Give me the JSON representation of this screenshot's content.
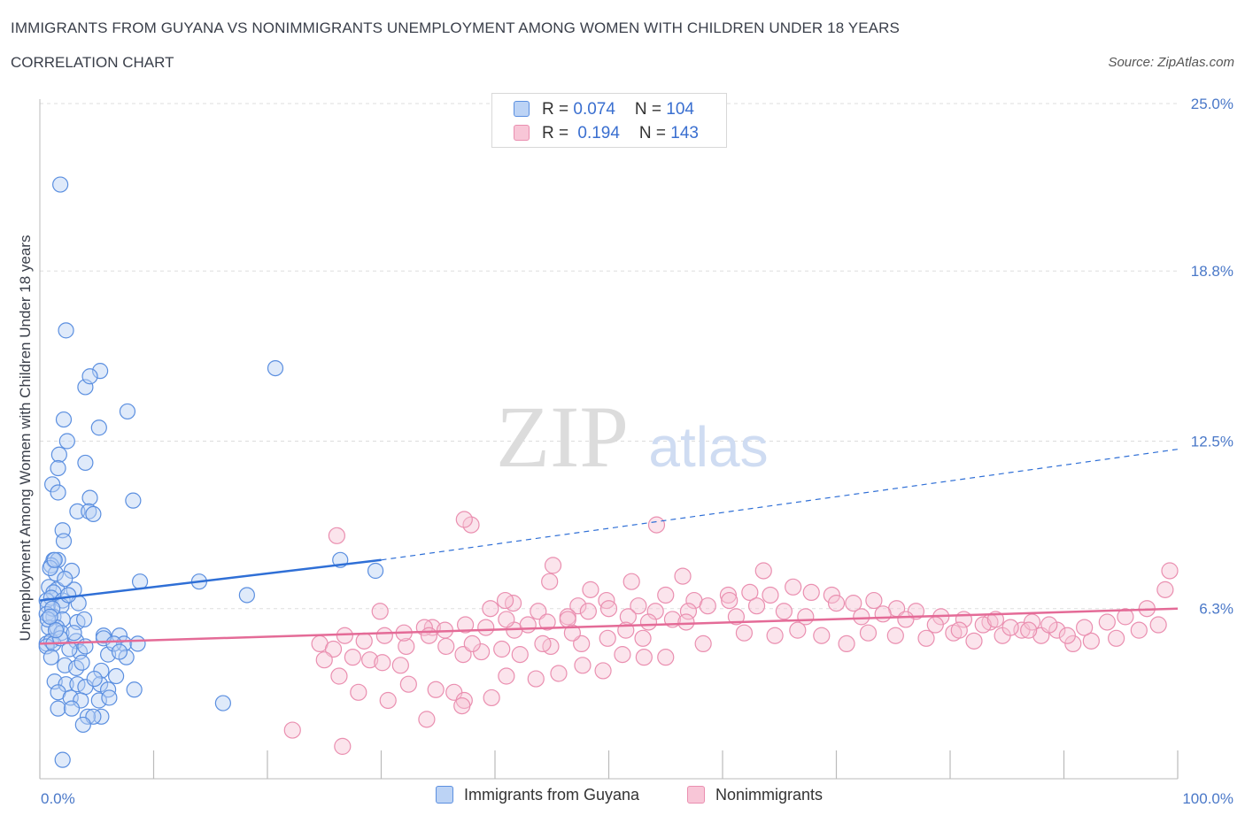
{
  "header": {
    "title": "IMMIGRANTS FROM GUYANA VS NONIMMIGRANTS UNEMPLOYMENT AMONG WOMEN WITH CHILDREN UNDER 18 YEARS",
    "subtitle": "CORRELATION CHART",
    "source": "Source: ZipAtlas.com"
  },
  "watermark": {
    "zip": "ZIP",
    "atlas": "atlas"
  },
  "legend": {
    "series1": {
      "r_label": "R = ",
      "r_value": "0.074",
      "n_label": "N = ",
      "n_value": "104",
      "name": "Immigrants from Guyana"
    },
    "series2": {
      "r_label": "R = ",
      "r_value": "0.194",
      "n_label": "N = ",
      "n_value": "143",
      "name": "Nonimmigrants"
    }
  },
  "colors": {
    "blue": "#5b8fe0",
    "blue_line": "#2f6fd6",
    "pink": "#ea8fb0",
    "pink_line": "#e46b97",
    "tick": "#4a78c8",
    "grid": "#dddddd"
  },
  "chart_data": {
    "type": "scatter",
    "title": "IMMIGRANTS FROM GUYANA VS NONIMMIGRANTS UNEMPLOYMENT AMONG WOMEN WITH CHILDREN UNDER 18 YEARS",
    "xlabel": "",
    "ylabel": "Unemployment Among Women with Children Under 18 years",
    "xlim": [
      0,
      100
    ],
    "ylim": [
      0,
      25
    ],
    "x_tick_labels": [
      "0.0%",
      "100.0%"
    ],
    "y_ticks": [
      6.3,
      12.5,
      18.8,
      25.0
    ],
    "y_tick_labels": [
      "6.3%",
      "12.5%",
      "18.8%",
      "25.0%"
    ],
    "grid": true,
    "legend_position": "top-center",
    "series": [
      {
        "name": "Immigrants from Guyana",
        "color": "#5b8fe0",
        "r": 0.074,
        "n": 104,
        "trend": {
          "x": [
            0,
            30
          ],
          "y": [
            6.6,
            8.1
          ],
          "dashed_to": [
            100,
            12.2
          ]
        },
        "points": [
          [
            1.8,
            22.0
          ],
          [
            2.3,
            16.6
          ],
          [
            5.3,
            15.1
          ],
          [
            20.7,
            15.2
          ],
          [
            4.0,
            14.5
          ],
          [
            4.4,
            14.9
          ],
          [
            7.7,
            13.6
          ],
          [
            2.1,
            13.3
          ],
          [
            5.2,
            13.0
          ],
          [
            2.4,
            12.5
          ],
          [
            1.7,
            12.0
          ],
          [
            1.6,
            11.5
          ],
          [
            4.0,
            11.7
          ],
          [
            1.1,
            10.9
          ],
          [
            1.6,
            10.6
          ],
          [
            4.4,
            10.4
          ],
          [
            8.2,
            10.3
          ],
          [
            3.3,
            9.9
          ],
          [
            4.3,
            9.9
          ],
          [
            4.7,
            9.8
          ],
          [
            2.0,
            9.2
          ],
          [
            2.1,
            8.8
          ],
          [
            1.2,
            8.1
          ],
          [
            1.6,
            8.1
          ],
          [
            1.0,
            7.9
          ],
          [
            2.8,
            7.7
          ],
          [
            1.4,
            7.6
          ],
          [
            26.4,
            8.1
          ],
          [
            29.5,
            7.7
          ],
          [
            8.8,
            7.3
          ],
          [
            14.0,
            7.3
          ],
          [
            0.8,
            7.1
          ],
          [
            1.5,
            7.0
          ],
          [
            3.0,
            7.0
          ],
          [
            1.2,
            6.9
          ],
          [
            0.6,
            6.6
          ],
          [
            1.0,
            6.7
          ],
          [
            2.0,
            6.6
          ],
          [
            3.4,
            6.5
          ],
          [
            0.7,
            6.4
          ],
          [
            1.9,
            6.4
          ],
          [
            18.2,
            6.8
          ],
          [
            0.6,
            6.1
          ],
          [
            1.2,
            6.0
          ],
          [
            2.0,
            5.9
          ],
          [
            3.3,
            5.8
          ],
          [
            0.8,
            5.6
          ],
          [
            1.5,
            5.6
          ],
          [
            1.9,
            5.4
          ],
          [
            5.6,
            5.3
          ],
          [
            7.0,
            5.3
          ],
          [
            3.2,
            5.1
          ],
          [
            7.4,
            5.0
          ],
          [
            8.6,
            5.0
          ],
          [
            0.6,
            5.0
          ],
          [
            1.0,
            5.1
          ],
          [
            0.6,
            4.9
          ],
          [
            1.2,
            5.0
          ],
          [
            3.5,
            4.7
          ],
          [
            4.0,
            4.9
          ],
          [
            6.0,
            4.6
          ],
          [
            7.6,
            4.5
          ],
          [
            1.0,
            4.5
          ],
          [
            2.2,
            4.2
          ],
          [
            3.2,
            4.1
          ],
          [
            5.4,
            4.0
          ],
          [
            6.7,
            3.8
          ],
          [
            1.3,
            3.6
          ],
          [
            2.3,
            3.5
          ],
          [
            3.3,
            3.5
          ],
          [
            4.0,
            3.4
          ],
          [
            5.3,
            3.5
          ],
          [
            6.0,
            3.3
          ],
          [
            8.3,
            3.3
          ],
          [
            1.6,
            3.2
          ],
          [
            2.7,
            3.0
          ],
          [
            3.6,
            2.9
          ],
          [
            5.2,
            2.9
          ],
          [
            1.6,
            2.6
          ],
          [
            2.8,
            2.6
          ],
          [
            5.4,
            2.3
          ],
          [
            4.2,
            2.3
          ],
          [
            4.7,
            2.3
          ],
          [
            3.8,
            2.0
          ],
          [
            16.1,
            2.8
          ],
          [
            2.0,
            0.7
          ],
          [
            1.1,
            6.3
          ],
          [
            2.5,
            6.8
          ],
          [
            3.0,
            5.4
          ],
          [
            5.6,
            5.2
          ],
          [
            6.5,
            5.0
          ],
          [
            7.0,
            4.7
          ],
          [
            1.8,
            5.2
          ],
          [
            0.9,
            7.8
          ],
          [
            2.2,
            7.4
          ],
          [
            1.3,
            8.1
          ],
          [
            0.7,
            5.9
          ],
          [
            3.7,
            4.3
          ],
          [
            4.8,
            3.7
          ],
          [
            6.1,
            3.0
          ],
          [
            0.9,
            6.0
          ],
          [
            1.4,
            5.5
          ],
          [
            2.6,
            4.8
          ],
          [
            3.9,
            5.9
          ]
        ]
      },
      {
        "name": "Nonimmigrants",
        "color": "#ea8fb0",
        "r": 0.194,
        "n": 143,
        "trend": {
          "x": [
            0,
            100
          ],
          "y": [
            5.0,
            6.3
          ]
        },
        "points": [
          [
            26.1,
            9.0
          ],
          [
            37.9,
            9.4
          ],
          [
            54.2,
            9.4
          ],
          [
            39.6,
            6.3
          ],
          [
            37.3,
            9.6
          ],
          [
            45.1,
            7.9
          ],
          [
            49.8,
            6.6
          ],
          [
            63.6,
            7.7
          ],
          [
            56.5,
            7.5
          ],
          [
            52.0,
            7.3
          ],
          [
            48.4,
            7.0
          ],
          [
            44.8,
            7.3
          ],
          [
            41.6,
            6.5
          ],
          [
            55.0,
            6.8
          ],
          [
            43.8,
            6.2
          ],
          [
            47.3,
            6.4
          ],
          [
            60.5,
            6.8
          ],
          [
            57.5,
            6.6
          ],
          [
            52.6,
            6.4
          ],
          [
            54.1,
            6.2
          ],
          [
            46.4,
            6.0
          ],
          [
            41.7,
            5.5
          ],
          [
            34.5,
            5.6
          ],
          [
            29.9,
            6.2
          ],
          [
            24.6,
            5.0
          ],
          [
            25.8,
            4.8
          ],
          [
            27.5,
            4.5
          ],
          [
            29.0,
            4.4
          ],
          [
            30.1,
            4.3
          ],
          [
            31.7,
            4.2
          ],
          [
            32.2,
            4.9
          ],
          [
            35.7,
            4.9
          ],
          [
            37.2,
            4.6
          ],
          [
            38.8,
            4.7
          ],
          [
            40.6,
            4.8
          ],
          [
            42.2,
            4.6
          ],
          [
            44.9,
            4.9
          ],
          [
            47.6,
            5.0
          ],
          [
            49.9,
            5.2
          ],
          [
            53.0,
            5.2
          ],
          [
            58.3,
            5.0
          ],
          [
            61.9,
            5.4
          ],
          [
            64.6,
            5.3
          ],
          [
            66.6,
            5.5
          ],
          [
            68.7,
            5.3
          ],
          [
            70.9,
            5.0
          ],
          [
            72.8,
            5.4
          ],
          [
            75.2,
            5.3
          ],
          [
            77.9,
            5.2
          ],
          [
            80.3,
            5.4
          ],
          [
            82.1,
            5.1
          ],
          [
            84.6,
            5.3
          ],
          [
            86.3,
            5.5
          ],
          [
            88.0,
            5.3
          ],
          [
            90.8,
            5.0
          ],
          [
            92.4,
            5.1
          ],
          [
            94.6,
            5.2
          ],
          [
            96.6,
            5.5
          ],
          [
            98.3,
            5.7
          ],
          [
            99.3,
            7.7
          ],
          [
            98.9,
            7.0
          ],
          [
            97.3,
            6.3
          ],
          [
            95.4,
            6.0
          ],
          [
            93.8,
            5.8
          ],
          [
            91.8,
            5.6
          ],
          [
            89.4,
            5.5
          ],
          [
            87.2,
            5.8
          ],
          [
            85.3,
            5.6
          ],
          [
            83.5,
            5.8
          ],
          [
            81.2,
            5.9
          ],
          [
            79.2,
            6.0
          ],
          [
            77.0,
            6.2
          ],
          [
            75.3,
            6.3
          ],
          [
            73.3,
            6.6
          ],
          [
            71.5,
            6.5
          ],
          [
            69.6,
            6.8
          ],
          [
            67.8,
            6.9
          ],
          [
            66.2,
            7.1
          ],
          [
            64.2,
            6.8
          ],
          [
            62.4,
            6.9
          ],
          [
            60.6,
            6.6
          ],
          [
            58.7,
            6.4
          ],
          [
            57.0,
            6.2
          ],
          [
            55.6,
            5.9
          ],
          [
            53.5,
            5.8
          ],
          [
            51.7,
            6.0
          ],
          [
            50.0,
            6.3
          ],
          [
            48.2,
            6.2
          ],
          [
            46.4,
            5.9
          ],
          [
            44.6,
            5.8
          ],
          [
            42.9,
            5.7
          ],
          [
            41.0,
            5.9
          ],
          [
            39.2,
            5.6
          ],
          [
            37.4,
            5.7
          ],
          [
            35.6,
            5.5
          ],
          [
            33.8,
            5.6
          ],
          [
            32.0,
            5.4
          ],
          [
            30.3,
            5.3
          ],
          [
            28.5,
            5.1
          ],
          [
            26.8,
            5.3
          ],
          [
            25.0,
            4.4
          ],
          [
            26.3,
            3.8
          ],
          [
            28.0,
            3.2
          ],
          [
            30.6,
            2.9
          ],
          [
            32.4,
            3.5
          ],
          [
            34.8,
            3.3
          ],
          [
            36.4,
            3.2
          ],
          [
            37.3,
            2.9
          ],
          [
            39.7,
            3.0
          ],
          [
            41.0,
            3.8
          ],
          [
            43.6,
            3.7
          ],
          [
            45.6,
            3.9
          ],
          [
            47.7,
            4.2
          ],
          [
            49.5,
            4.0
          ],
          [
            51.2,
            4.6
          ],
          [
            53.1,
            4.5
          ],
          [
            55.0,
            4.5
          ],
          [
            34.0,
            2.2
          ],
          [
            37.1,
            2.7
          ],
          [
            22.2,
            1.8
          ],
          [
            26.6,
            1.2
          ],
          [
            34.2,
            5.3
          ],
          [
            38.0,
            5.0
          ],
          [
            44.2,
            5.0
          ],
          [
            40.9,
            6.6
          ],
          [
            46.8,
            5.4
          ],
          [
            51.5,
            5.5
          ],
          [
            56.8,
            5.8
          ],
          [
            61.2,
            6.0
          ],
          [
            63.0,
            6.4
          ],
          [
            65.4,
            6.2
          ],
          [
            67.3,
            6.0
          ],
          [
            70.0,
            6.5
          ],
          [
            72.2,
            6.0
          ],
          [
            74.1,
            6.1
          ],
          [
            76.1,
            5.9
          ],
          [
            78.7,
            5.7
          ],
          [
            80.8,
            5.5
          ],
          [
            82.9,
            5.7
          ],
          [
            84.0,
            5.9
          ],
          [
            86.9,
            5.5
          ],
          [
            88.7,
            5.7
          ],
          [
            90.3,
            5.3
          ]
        ]
      }
    ]
  }
}
